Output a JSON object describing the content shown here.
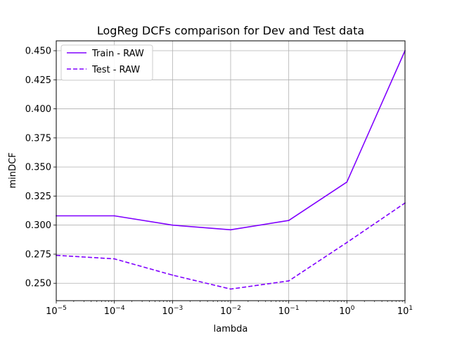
{
  "chart_data": {
    "type": "line",
    "title": "LogReg DCFs comparison for Dev and Test data",
    "xlabel": "lambda",
    "ylabel": "minDCF",
    "x_scale": "log",
    "x": [
      1e-05,
      0.0001,
      0.001,
      0.01,
      0.1,
      1,
      10
    ],
    "xlim": [
      1e-05,
      10
    ],
    "ylim": [
      0.235,
      0.4585
    ],
    "x_ticks": [
      {
        "value": 1e-05,
        "base": "10",
        "exp": "−5"
      },
      {
        "value": 0.0001,
        "base": "10",
        "exp": "−4"
      },
      {
        "value": 0.001,
        "base": "10",
        "exp": "−3"
      },
      {
        "value": 0.01,
        "base": "10",
        "exp": "−2"
      },
      {
        "value": 0.1,
        "base": "10",
        "exp": "−1"
      },
      {
        "value": 1,
        "base": "10",
        "exp": "0"
      },
      {
        "value": 10,
        "base": "10",
        "exp": "1"
      }
    ],
    "y_ticks": [
      0.25,
      0.275,
      0.3,
      0.325,
      0.35,
      0.375,
      0.4,
      0.425,
      0.45
    ],
    "y_tick_labels": [
      "0.250",
      "0.275",
      "0.300",
      "0.325",
      "0.350",
      "0.375",
      "0.400",
      "0.425",
      "0.450"
    ],
    "grid": true,
    "legend_position": "top-left",
    "series": [
      {
        "name": "Train - RAW",
        "values": [
          0.308,
          0.308,
          0.3,
          0.296,
          0.304,
          0.337,
          0.45
        ],
        "color": "#8000ff",
        "dash": "solid"
      },
      {
        "name": "Test - RAW",
        "values": [
          0.274,
          0.271,
          0.257,
          0.245,
          0.252,
          0.285,
          0.319
        ],
        "color": "#8000ff",
        "dash": "dashed"
      }
    ]
  }
}
